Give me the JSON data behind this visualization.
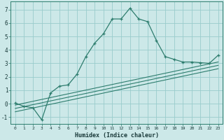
{
  "xlabel": "Humidex (Indice chaleur)",
  "bg_color": "#cce8e8",
  "grid_color": "#99cccc",
  "line_color": "#2e7d6e",
  "xlim": [
    -0.5,
    23.5
  ],
  "ylim": [
    -1.5,
    7.6
  ],
  "yticks": [
    -1,
    0,
    1,
    2,
    3,
    4,
    5,
    6,
    7
  ],
  "xticks": [
    0,
    1,
    2,
    3,
    4,
    5,
    6,
    7,
    8,
    9,
    10,
    11,
    12,
    13,
    14,
    15,
    16,
    17,
    18,
    19,
    20,
    21,
    22,
    23
  ],
  "main_line_x": [
    0,
    1,
    2,
    3,
    4,
    5,
    6,
    7,
    8,
    9,
    10,
    11,
    12,
    13,
    14,
    15,
    16,
    17,
    18,
    19,
    20,
    21,
    22,
    23
  ],
  "main_line_y": [
    0.05,
    -0.2,
    -0.3,
    -1.2,
    0.8,
    1.3,
    1.4,
    2.2,
    3.5,
    4.5,
    5.2,
    6.3,
    6.3,
    7.1,
    6.3,
    6.1,
    4.7,
    3.5,
    3.3,
    3.1,
    3.1,
    3.05,
    3.0,
    3.6
  ],
  "line2_x": [
    0,
    23
  ],
  "line2_y": [
    -0.1,
    3.1
  ],
  "line3_x": [
    0,
    23
  ],
  "line3_y": [
    -0.35,
    2.85
  ],
  "line4_x": [
    0,
    23
  ],
  "line4_y": [
    -0.6,
    2.6
  ]
}
